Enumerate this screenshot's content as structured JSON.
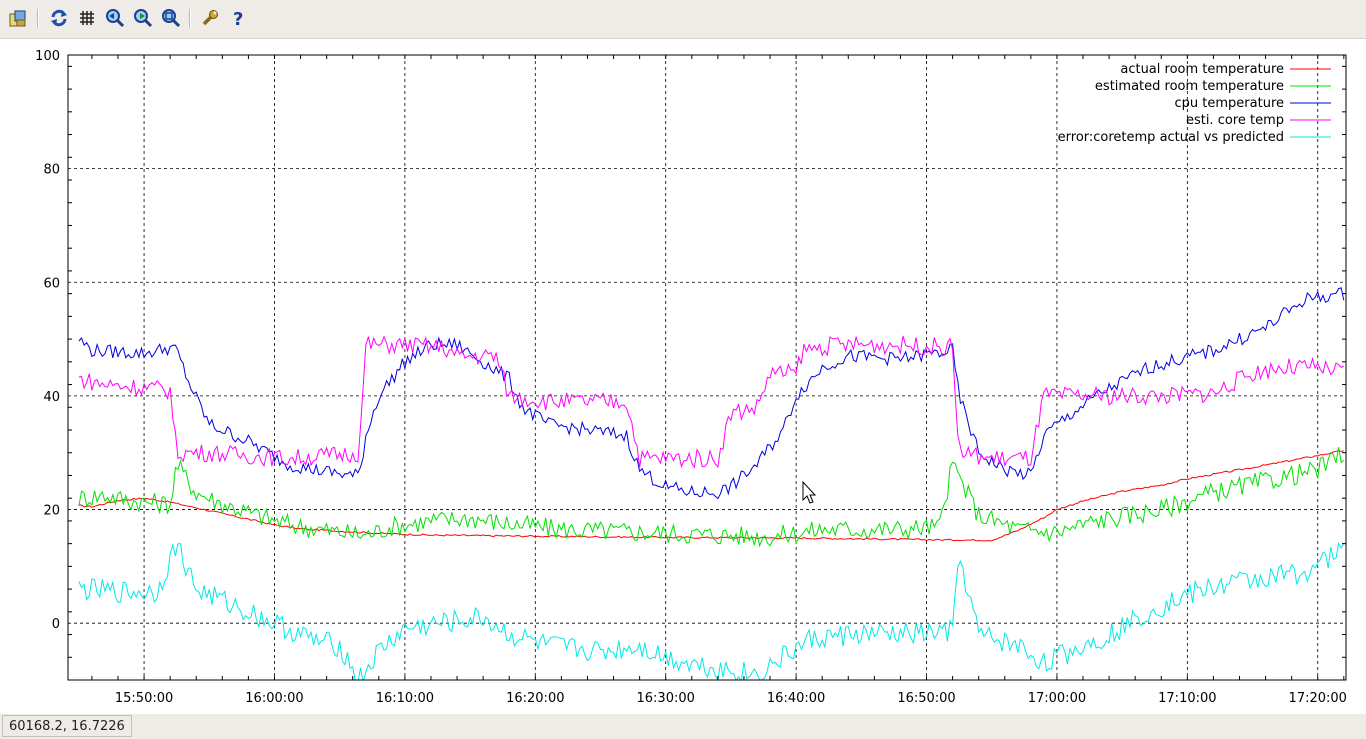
{
  "toolbar": {
    "buttons": [
      {
        "name": "export-icon"
      },
      {
        "name": "replot-icon"
      },
      {
        "name": "grid-icon"
      },
      {
        "name": "zoom-previous-icon"
      },
      {
        "name": "zoom-next-icon"
      },
      {
        "name": "unzoom-icon"
      },
      {
        "name": "settings-icon"
      },
      {
        "name": "help-icon"
      }
    ]
  },
  "status": {
    "coords": "60168.2,  16.7226"
  },
  "colors": {
    "actual_room": "#ff0000",
    "estimated_room": "#00e000",
    "cpu": "#0000e0",
    "core_est": "#ff00ff",
    "error": "#00e8e8"
  },
  "chart_data": {
    "type": "line",
    "title": "",
    "xlabel": "",
    "ylabel": "",
    "xlim": [
      "15:44:10",
      "17:22:10"
    ],
    "ylim": [
      -10,
      100
    ],
    "grid": true,
    "legend_position": "top-right",
    "x_ticks": [
      "15:50:00",
      "16:00:00",
      "16:10:00",
      "16:20:00",
      "16:30:00",
      "16:40:00",
      "16:50:00",
      "17:00:00",
      "17:10:00",
      "17:20:00"
    ],
    "y_ticks": [
      "0",
      "20",
      "40",
      "60",
      "80",
      "100"
    ],
    "series": [
      {
        "name": "actual room temperature",
        "color": "#ff0000",
        "points": [
          [
            "15:45:00",
            20.7
          ],
          [
            "15:46:00",
            20.5
          ],
          [
            "15:48:00",
            21.6
          ],
          [
            "15:50:00",
            22.0
          ],
          [
            "15:52:00",
            21.3
          ],
          [
            "15:54:00",
            20.3
          ],
          [
            "15:56:00",
            19.3
          ],
          [
            "15:58:00",
            18.3
          ],
          [
            "16:00:00",
            17.3
          ],
          [
            "16:02:00",
            16.6
          ],
          [
            "16:05:00",
            16.2
          ],
          [
            "16:08:00",
            15.8
          ],
          [
            "16:12:00",
            15.5
          ],
          [
            "16:20:00",
            15.3
          ],
          [
            "16:30:00",
            15.1
          ],
          [
            "16:40:00",
            15.0
          ],
          [
            "16:50:00",
            14.7
          ],
          [
            "16:55:00",
            14.6
          ],
          [
            "16:57:00",
            16.3
          ],
          [
            "16:59:00",
            18.6
          ],
          [
            "17:00:00",
            20.0
          ],
          [
            "17:02:00",
            21.5
          ],
          [
            "17:05:00",
            23.2
          ],
          [
            "17:08:00",
            24.3
          ],
          [
            "17:10:00",
            25.4
          ],
          [
            "17:15:00",
            27.4
          ],
          [
            "17:20:00",
            29.5
          ],
          [
            "17:22:00",
            30.4
          ]
        ]
      },
      {
        "name": "estimated room temperature",
        "color": "#00e000",
        "points": [
          [
            "15:45:00",
            22
          ],
          [
            "15:47:00",
            22.5
          ],
          [
            "15:49:00",
            21.5
          ],
          [
            "15:52:00",
            21
          ],
          [
            "15:52:30",
            28
          ],
          [
            "15:54:00",
            23
          ],
          [
            "15:56:00",
            21
          ],
          [
            "15:58:00",
            19.5
          ],
          [
            "16:00:00",
            18
          ],
          [
            "16:02:00",
            17
          ],
          [
            "16:05:00",
            16
          ],
          [
            "16:07:00",
            15.5
          ],
          [
            "16:09:00",
            17
          ],
          [
            "16:12:00",
            18
          ],
          [
            "16:15:00",
            18.5
          ],
          [
            "16:18:00",
            17.5
          ],
          [
            "16:22:00",
            16.5
          ],
          [
            "16:28:00",
            16
          ],
          [
            "16:34:00",
            15.5
          ],
          [
            "16:38:00",
            15.2
          ],
          [
            "16:42:00",
            16.5
          ],
          [
            "16:48:00",
            16.5
          ],
          [
            "16:51:00",
            17
          ],
          [
            "16:52:00",
            28
          ],
          [
            "16:54:00",
            19
          ],
          [
            "16:57:00",
            16.5
          ],
          [
            "17:00:00",
            16
          ],
          [
            "17:03:00",
            18
          ],
          [
            "17:08:00",
            20
          ],
          [
            "17:12:00",
            23
          ],
          [
            "17:16:00",
            25
          ],
          [
            "17:20:00",
            27
          ],
          [
            "17:22:00",
            30
          ]
        ]
      },
      {
        "name": "cpu temperature",
        "color": "#0000e0",
        "points": [
          [
            "15:45:00",
            50
          ],
          [
            "15:46:00",
            48
          ],
          [
            "15:50:00",
            47.5
          ],
          [
            "15:52:00",
            48.5
          ],
          [
            "15:52:30",
            48
          ],
          [
            "15:53:30",
            42
          ],
          [
            "15:55:00",
            35
          ],
          [
            "15:58:00",
            32
          ],
          [
            "16:01:00",
            28
          ],
          [
            "16:03:00",
            27
          ],
          [
            "16:06:00",
            26
          ],
          [
            "16:06:30",
            26
          ],
          [
            "16:07:00",
            33
          ],
          [
            "16:08:00",
            40
          ],
          [
            "16:10:00",
            46
          ],
          [
            "16:12:00",
            49
          ],
          [
            "16:14:00",
            49
          ],
          [
            "16:16:00",
            46
          ],
          [
            "16:18:00",
            43
          ],
          [
            "16:19:00",
            38
          ],
          [
            "16:21:00",
            35
          ],
          [
            "16:24:00",
            34
          ],
          [
            "16:27:00",
            33
          ],
          [
            "16:28:00",
            27
          ],
          [
            "16:30:00",
            24
          ],
          [
            "16:32:00",
            23
          ],
          [
            "16:34:00",
            23
          ],
          [
            "16:35:00",
            24
          ],
          [
            "16:37:00",
            28
          ],
          [
            "16:39:00",
            34
          ],
          [
            "16:40:00",
            40
          ],
          [
            "16:42:00",
            45
          ],
          [
            "16:44:00",
            47
          ],
          [
            "16:48:00",
            46.5
          ],
          [
            "16:52:00",
            48
          ],
          [
            "16:52:30",
            40
          ],
          [
            "16:54:00",
            30
          ],
          [
            "16:56:00",
            27
          ],
          [
            "16:58:00",
            26
          ],
          [
            "16:59:00",
            33
          ],
          [
            "17:00:00",
            35
          ],
          [
            "17:03:00",
            40
          ],
          [
            "17:07:00",
            45
          ],
          [
            "17:12:00",
            48
          ],
          [
            "17:16:00",
            52
          ],
          [
            "17:19:00",
            57
          ],
          [
            "17:22:00",
            58
          ]
        ]
      },
      {
        "name": "esti. core temp",
        "color": "#ff00ff",
        "points": [
          [
            "15:45:00",
            43
          ],
          [
            "15:47:00",
            42
          ],
          [
            "15:50:00",
            41.5
          ],
          [
            "15:52:00",
            41
          ],
          [
            "15:52:30",
            30
          ],
          [
            "15:55:00",
            30
          ],
          [
            "15:58:00",
            29.5
          ],
          [
            "16:01:00",
            29
          ],
          [
            "16:04:00",
            29.5
          ],
          [
            "16:06:30",
            30
          ],
          [
            "16:07:00",
            49
          ],
          [
            "16:10:00",
            49
          ],
          [
            "16:13:00",
            48.5
          ],
          [
            "16:14:00",
            47
          ],
          [
            "16:17:00",
            47
          ],
          [
            "16:18:00",
            40
          ],
          [
            "16:21:00",
            39
          ],
          [
            "16:25:00",
            39
          ],
          [
            "16:27:00",
            39
          ],
          [
            "16:28:00",
            29
          ],
          [
            "16:31:00",
            29
          ],
          [
            "16:34:00",
            29
          ],
          [
            "16:35:00",
            37
          ],
          [
            "16:37:00",
            38
          ],
          [
            "16:38:00",
            44
          ],
          [
            "16:40:00",
            44
          ],
          [
            "16:40:30",
            48
          ],
          [
            "16:43:00",
            49
          ],
          [
            "16:48:00",
            49
          ],
          [
            "16:52:00",
            48.5
          ],
          [
            "16:52:30",
            30
          ],
          [
            "16:55:00",
            29
          ],
          [
            "16:58:00",
            29
          ],
          [
            "16:59:00",
            40
          ],
          [
            "17:03:00",
            40
          ],
          [
            "17:08:00",
            40
          ],
          [
            "17:12:00",
            40.5
          ],
          [
            "17:15:00",
            44
          ],
          [
            "17:17:00",
            45
          ],
          [
            "17:20:00",
            45
          ],
          [
            "17:22:00",
            44
          ]
        ]
      },
      {
        "name": "error:coretemp actual vs predicted",
        "color": "#00e8e8",
        "points": [
          [
            "15:45:00",
            6
          ],
          [
            "15:48:00",
            5.5
          ],
          [
            "15:51:00",
            5.5
          ],
          [
            "15:52:30",
            14
          ],
          [
            "15:54:00",
            6
          ],
          [
            "15:57:00",
            3
          ],
          [
            "16:00:00",
            0
          ],
          [
            "16:03:00",
            -3
          ],
          [
            "16:05:00",
            -4
          ],
          [
            "16:06:30",
            -10
          ],
          [
            "16:08:00",
            -5
          ],
          [
            "16:10:00",
            -1
          ],
          [
            "16:13:00",
            0
          ],
          [
            "16:16:00",
            1
          ],
          [
            "16:18:00",
            -2
          ],
          [
            "16:21:00",
            -4
          ],
          [
            "16:25:00",
            -5
          ],
          [
            "16:28:00",
            -4
          ],
          [
            "16:30:00",
            -6
          ],
          [
            "16:34:00",
            -8
          ],
          [
            "16:37:00",
            -9
          ],
          [
            "16:39:00",
            -6
          ],
          [
            "16:41:00",
            -3
          ],
          [
            "16:44:00",
            -2
          ],
          [
            "16:48:00",
            -2
          ],
          [
            "16:52:00",
            -1.5
          ],
          [
            "16:52:30",
            12
          ],
          [
            "16:54:00",
            -2
          ],
          [
            "16:57:00",
            -4
          ],
          [
            "16:59:00",
            -7
          ],
          [
            "17:01:00",
            -5
          ],
          [
            "17:04:00",
            -2
          ],
          [
            "17:07:00",
            2
          ],
          [
            "17:10:00",
            5
          ],
          [
            "17:13:00",
            7
          ],
          [
            "17:16:00",
            8
          ],
          [
            "17:19:00",
            9
          ],
          [
            "17:22:00",
            13
          ]
        ]
      }
    ]
  }
}
